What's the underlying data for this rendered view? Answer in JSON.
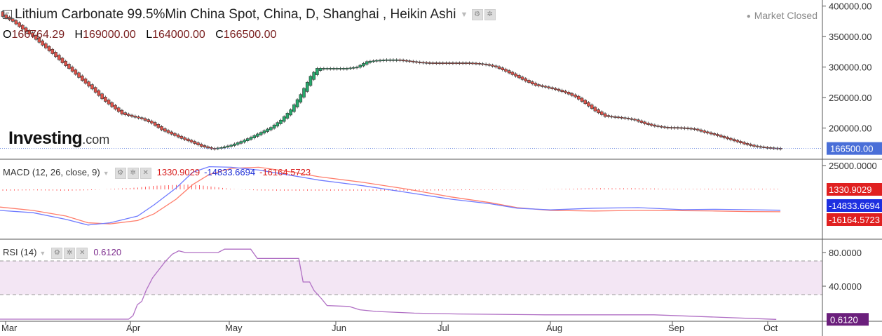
{
  "header": {
    "title": "Lithium Carbonate 99.5%Min China Spot, China, D, Shanghai , Heikin Ashi",
    "ohlc": {
      "o_label": "O",
      "o": "166764.29",
      "h_label": "H",
      "h": "169000.00",
      "l_label": "L",
      "l": "164000.00",
      "c_label": "C",
      "c": "166500.00"
    },
    "market_status": "Market Closed"
  },
  "branding": {
    "logo_main": "Investing",
    "logo_suffix": ".com"
  },
  "indicators": {
    "macd": {
      "label": "MACD (12, 26, close, 9)",
      "hist": "1330.9029",
      "macd": "-14833.6694",
      "signal": "-16164.5723"
    },
    "rsi": {
      "label": "RSI (14)",
      "value": "0.6120"
    }
  },
  "icons": [
    "gear-icon",
    "settings-icon",
    "close-icon",
    "chevron-down-icon"
  ],
  "colors": {
    "up_candle": "#26a96c",
    "down_candle": "#e0534a",
    "macd_line": "#6f7bff",
    "signal_line": "#ff7d6b",
    "histogram": "#ff5a5a",
    "rsi_line": "#b06fc4",
    "rsi_band": "#f3e6f4",
    "price_tag": "#4a6fd8",
    "macd_tag_red": "#e02020",
    "macd_tag_blue": "#1d2fe0",
    "rsi_tag": "#6b1f7c"
  },
  "chart_data": [
    {
      "type": "candlestick",
      "subtype": "heikin-ashi",
      "x_ticks": [
        "Mar",
        "Apr",
        "May",
        "Jun",
        "Jul",
        "Aug",
        "Sep",
        "Oct"
      ],
      "y_ticks": [
        "400000.00",
        "350000.00",
        "300000.00",
        "250000.00",
        "200000.00"
      ],
      "ylim": [
        150000,
        410000
      ],
      "last_price": 166500,
      "last_price_label": "166500.00",
      "close_path": [
        [
          0,
          383000
        ],
        [
          3,
          375000
        ],
        [
          6,
          362000
        ],
        [
          9,
          350000
        ],
        [
          12,
          336000
        ],
        [
          15,
          322000
        ],
        [
          18,
          307000
        ],
        [
          21,
          293000
        ],
        [
          24,
          278000
        ],
        [
          27,
          264000
        ],
        [
          30,
          248000
        ],
        [
          33,
          235000
        ],
        [
          36,
          223000
        ],
        [
          39,
          219000
        ],
        [
          42,
          215000
        ],
        [
          45,
          208000
        ],
        [
          48,
          197000
        ],
        [
          51,
          190000
        ],
        [
          54,
          183000
        ],
        [
          57,
          177000
        ],
        [
          60,
          170000
        ],
        [
          63,
          166000
        ],
        [
          66,
          168000
        ],
        [
          69,
          172000
        ],
        [
          72,
          178000
        ],
        [
          75,
          185000
        ],
        [
          78,
          193000
        ],
        [
          81,
          201000
        ],
        [
          84,
          213000
        ],
        [
          87,
          230000
        ],
        [
          90,
          255000
        ],
        [
          93,
          285000
        ],
        [
          95,
          298000
        ],
        [
          98,
          298000
        ],
        [
          101,
          298000
        ],
        [
          104,
          298000
        ],
        [
          107,
          300000
        ],
        [
          110,
          309000
        ],
        [
          113,
          311000
        ],
        [
          116,
          312000
        ],
        [
          119,
          312000
        ],
        [
          122,
          310000
        ],
        [
          125,
          308000
        ],
        [
          128,
          307000
        ],
        [
          131,
          307000
        ],
        [
          134,
          307000
        ],
        [
          137,
          307000
        ],
        [
          140,
          307000
        ],
        [
          143,
          306000
        ],
        [
          146,
          304000
        ],
        [
          149,
          300000
        ],
        [
          152,
          293000
        ],
        [
          155,
          285000
        ],
        [
          158,
          277000
        ],
        [
          161,
          270000
        ],
        [
          164,
          267000
        ],
        [
          167,
          263000
        ],
        [
          170,
          258000
        ],
        [
          173,
          251000
        ],
        [
          176,
          240000
        ],
        [
          179,
          228000
        ],
        [
          182,
          219000
        ],
        [
          185,
          218000
        ],
        [
          188,
          216000
        ],
        [
          191,
          213000
        ],
        [
          194,
          207000
        ],
        [
          197,
          203000
        ],
        [
          200,
          201000
        ],
        [
          203,
          201000
        ],
        [
          206,
          200000
        ],
        [
          209,
          198000
        ],
        [
          212,
          193000
        ],
        [
          215,
          189000
        ],
        [
          218,
          184000
        ],
        [
          221,
          179000
        ],
        [
          224,
          174000
        ],
        [
          227,
          170000
        ],
        [
          230,
          168000
        ],
        [
          233,
          167000
        ],
        [
          235,
          166500
        ]
      ]
    },
    {
      "type": "macd",
      "ylim": [
        -40000,
        30000
      ],
      "y_ticks": [
        "25000.0000"
      ],
      "tags": [
        "1330.9029",
        "-14833.6694",
        "-16164.5723"
      ],
      "macd_path": [
        [
          0,
          -15000
        ],
        [
          30,
          -17000
        ],
        [
          60,
          -23000
        ],
        [
          80,
          -28000
        ],
        [
          100,
          -26000
        ],
        [
          125,
          -20000
        ],
        [
          140,
          -10000
        ],
        [
          160,
          5000
        ],
        [
          175,
          19000
        ],
        [
          190,
          24000
        ],
        [
          210,
          23500
        ],
        [
          235,
          21000
        ],
        [
          260,
          17000
        ],
        [
          290,
          12000
        ],
        [
          330,
          7000
        ],
        [
          370,
          1000
        ],
        [
          410,
          -5000
        ],
        [
          445,
          -9000
        ],
        [
          470,
          -13000
        ],
        [
          500,
          -14500
        ],
        [
          540,
          -13000
        ],
        [
          580,
          -12500
        ],
        [
          620,
          -14300
        ],
        [
          650,
          -14000
        ],
        [
          680,
          -14400
        ],
        [
          709,
          -14834
        ]
      ],
      "signal_path": [
        [
          0,
          -12000
        ],
        [
          30,
          -15000
        ],
        [
          60,
          -20000
        ],
        [
          80,
          -26000
        ],
        [
          100,
          -27000
        ],
        [
          125,
          -24000
        ],
        [
          140,
          -18000
        ],
        [
          160,
          -5000
        ],
        [
          175,
          8000
        ],
        [
          190,
          17000
        ],
        [
          210,
          22500
        ],
        [
          235,
          23500
        ],
        [
          260,
          20000
        ],
        [
          290,
          15000
        ],
        [
          330,
          10000
        ],
        [
          370,
          4000
        ],
        [
          410,
          -3000
        ],
        [
          445,
          -8000
        ],
        [
          470,
          -12500
        ],
        [
          500,
          -15000
        ],
        [
          540,
          -15500
        ],
        [
          580,
          -15000
        ],
        [
          620,
          -15200
        ],
        [
          650,
          -15500
        ],
        [
          680,
          -16000
        ],
        [
          709,
          -16165
        ]
      ],
      "histogram_last": 1330.9029
    },
    {
      "type": "rsi",
      "ylim": [
        0,
        95
      ],
      "y_ticks": [
        "80.0000",
        "40.0000"
      ],
      "band": [
        70,
        30
      ],
      "last_value": 0.612,
      "last_label": "0.6120",
      "path": [
        [
          0,
          0.8
        ],
        [
          60,
          0.8
        ],
        [
          118,
          0.8
        ],
        [
          122,
          5
        ],
        [
          126,
          18
        ],
        [
          130,
          22
        ],
        [
          134,
          35
        ],
        [
          140,
          50
        ],
        [
          146,
          60
        ],
        [
          152,
          70
        ],
        [
          158,
          78
        ],
        [
          164,
          82
        ],
        [
          170,
          80
        ],
        [
          200,
          80
        ],
        [
          206,
          84
        ],
        [
          230,
          84
        ],
        [
          236,
          73
        ],
        [
          274,
          73
        ],
        [
          278,
          45
        ],
        [
          284,
          45
        ],
        [
          288,
          35
        ],
        [
          295,
          25
        ],
        [
          300,
          17
        ],
        [
          320,
          16
        ],
        [
          330,
          12
        ],
        [
          345,
          10
        ],
        [
          380,
          8
        ],
        [
          420,
          7
        ],
        [
          500,
          6
        ],
        [
          600,
          6
        ],
        [
          712,
          0.6
        ]
      ]
    }
  ]
}
